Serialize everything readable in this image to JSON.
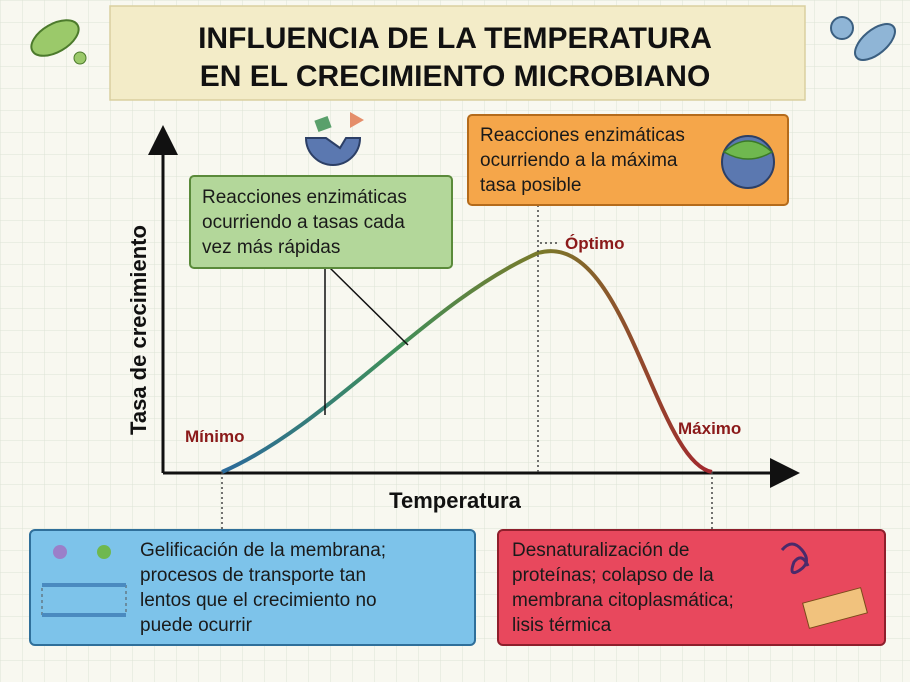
{
  "title": [
    "INFLUENCIA DE LA TEMPERATURA",
    "EN EL CRECIMIENTO MICROBIANO"
  ],
  "axes": {
    "y_label": "Tasa de crecimiento",
    "x_label": "Temperatura"
  },
  "points": {
    "minimum": "Mínimo",
    "optimum": "Óptimo",
    "maximum": "Máximo"
  },
  "boxes": {
    "rising": [
      "Reacciones enzimáticas",
      "ocurriendo a tasas cada",
      "vez más rápidas"
    ],
    "optimum": [
      "Reacciones enzimáticas",
      "ocurriendo a la máxima",
      "tasa posible"
    ],
    "minimum": [
      "Gelificación de la membrana;",
      "procesos de transporte tan",
      "lentos que el crecimiento no",
      "puede ocurrir"
    ],
    "maximum": [
      "Desnaturalización de",
      "proteínas; colapso de la",
      "membrana citoplasmática;",
      "lisis térmica"
    ]
  }
}
